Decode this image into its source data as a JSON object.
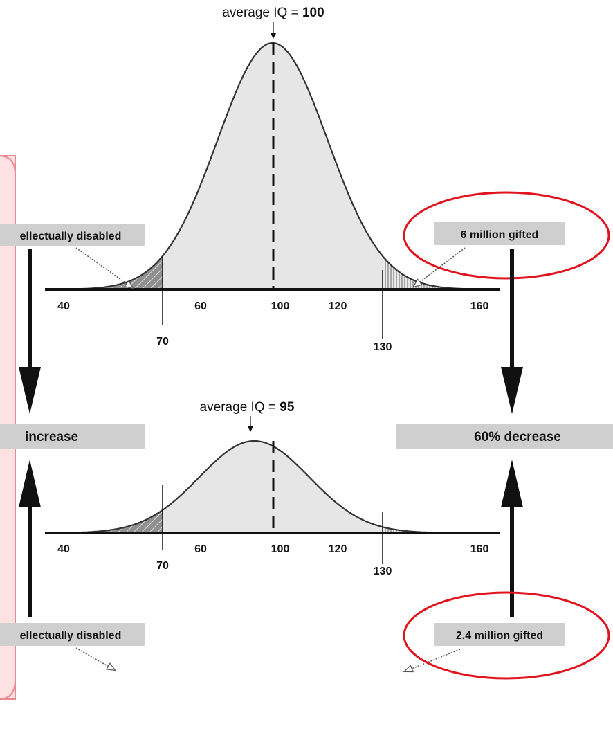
{
  "top": {
    "mean_label_prefix": "average IQ = ",
    "mean_value": "100",
    "mean_iq": 100,
    "left_box": "ellectually disabled",
    "right_box": "6 million gifted"
  },
  "bottom": {
    "mean_label_prefix": "average IQ = ",
    "mean_value": "95",
    "mean_iq": 95,
    "left_box": "ellectually disabled",
    "right_box": "2.4 million gifted"
  },
  "middle": {
    "left_box": "increase",
    "right_box": "60% decrease"
  },
  "axis": {
    "upper_ticks": [
      "40",
      "60",
      "100",
      "120",
      "160"
    ],
    "lower_ticks": [
      "70",
      "130"
    ]
  },
  "colors": {
    "curve_fill": "#e6e6e6",
    "tail_fill": "#9a9a9a",
    "label_box": "#cfcfcf",
    "highlight_ellipse": "#e0141e",
    "panel_fill": "#fde1e3",
    "panel_border": "#e98990"
  }
}
